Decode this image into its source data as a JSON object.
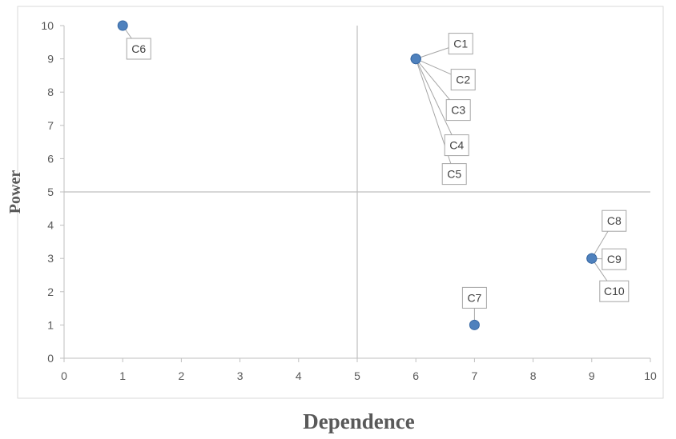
{
  "chart_data": {
    "type": "scatter",
    "title": "",
    "xlabel": "Dependence",
    "ylabel": "Power",
    "xlim": [
      0,
      10
    ],
    "ylim": [
      0,
      10
    ],
    "x_ticks": [
      "0",
      "1",
      "2",
      "3",
      "4",
      "5",
      "6",
      "7",
      "8",
      "9",
      "10"
    ],
    "y_ticks": [
      "0",
      "1",
      "2",
      "3",
      "4",
      "5",
      "6",
      "7",
      "8",
      "9",
      "10"
    ],
    "grid": "quadrant lines at x=5 and y=5",
    "marker_color": "#4f81bd",
    "points": [
      {
        "label": "C1",
        "x": 6,
        "y": 9
      },
      {
        "label": "C2",
        "x": 6,
        "y": 9
      },
      {
        "label": "C3",
        "x": 6,
        "y": 9
      },
      {
        "label": "C4",
        "x": 6,
        "y": 9
      },
      {
        "label": "C5",
        "x": 6,
        "y": 9
      },
      {
        "label": "C6",
        "x": 1,
        "y": 10
      },
      {
        "label": "C7",
        "x": 7,
        "y": 1
      },
      {
        "label": "C8",
        "x": 9,
        "y": 3
      },
      {
        "label": "C9",
        "x": 9,
        "y": 3
      },
      {
        "label": "C10",
        "x": 9,
        "y": 3
      }
    ]
  }
}
